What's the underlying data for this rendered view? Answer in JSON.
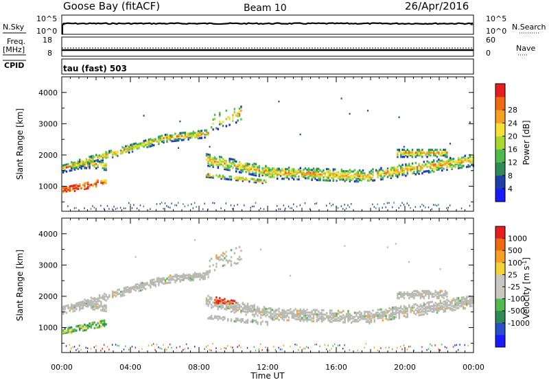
{
  "header": {
    "station": "Goose Bay (fitACF)",
    "beam": "Beam 10",
    "date": "26/Apr/2016"
  },
  "panels": {
    "nsky": {
      "label": "N.Sky",
      "right_label": "N.Search",
      "top_tick": "10^5",
      "bottom_tick": "10^0"
    },
    "freq": {
      "label_line1": "Freq.",
      "label_line2": "[MHz]",
      "left_top": "18",
      "left_bottom": "8",
      "right_top": "60",
      "right_bottom": "0",
      "right_label": "Nave"
    },
    "cpid": {
      "label": "CPID",
      "value": "tau (fast) 503"
    }
  },
  "colors": {
    "power_scale": [
      "#1a1aff",
      "#1f3fa8",
      "#2e8b57",
      "#4dbb4d",
      "#a6d82e",
      "#f5e03a",
      "#f7a021",
      "#f06a10",
      "#e61e1e"
    ],
    "velocity_scale": [
      "#1a1aff",
      "#2850c8",
      "#2e8b57",
      "#4dbb4d",
      "#c8c8c0",
      "#c8c8c0",
      "#f5d23a",
      "#f7a021",
      "#f06a10",
      "#e61e1e"
    ],
    "ground_scatter": "#b9b9b4"
  },
  "chart_data": [
    {
      "type": "heatmap",
      "name": "power",
      "ylabel": "Slant Range [km]",
      "xlabel": "",
      "ylim": [
        200,
        4500
      ],
      "y_ticks": [
        "1000",
        "2000",
        "3000",
        "4000"
      ],
      "colorbar_label": "Power [dB]",
      "colorbar_ticks": [
        "4",
        "8",
        "12",
        "16",
        "20",
        "24",
        "28"
      ],
      "range_limits": [
        0,
        30
      ]
    },
    {
      "type": "heatmap",
      "name": "velocity",
      "ylabel": "Slant Range [km]",
      "xlabel": "Time UT",
      "ylim": [
        200,
        4500
      ],
      "y_ticks": [
        "1000",
        "2000",
        "3000",
        "4000"
      ],
      "x_ticks": [
        "00:00",
        "04:00",
        "08:00",
        "12:00",
        "16:00",
        "20:00",
        "00:00"
      ],
      "colorbar_label": "Velocity [m s",
      "colorbar_label_sup": "-1",
      "colorbar_ticks": [
        "1000",
        "500",
        "100",
        "25",
        "-25",
        "-100",
        "-500",
        "-1000"
      ]
    }
  ]
}
